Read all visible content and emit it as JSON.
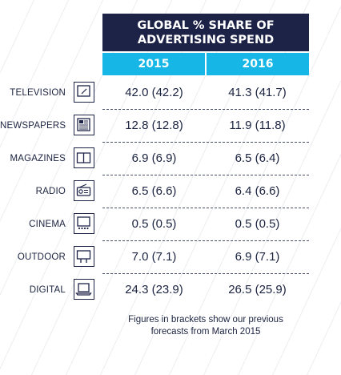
{
  "chart_data": {
    "type": "table",
    "title_line1": "GLOBAL % SHARE OF",
    "title_line2": "ADVERTISING SPEND",
    "columns": [
      "2015",
      "2016"
    ],
    "rows": [
      {
        "label": "TELEVISION",
        "icon": "television-icon",
        "v2015": "42.0 (42.2)",
        "v2016": "41.3 (41.7)"
      },
      {
        "label": "NEWSPAPERS",
        "icon": "newspaper-icon",
        "v2015": "12.8 (12.8)",
        "v2016": "11.9 (11.8)"
      },
      {
        "label": "MAGAZINES",
        "icon": "magazine-icon",
        "v2015": "6.9 (6.9)",
        "v2016": "6.5 (6.4)"
      },
      {
        "label": "RADIO",
        "icon": "radio-icon",
        "v2015": "6.5 (6.6)",
        "v2016": "6.4 (6.6)"
      },
      {
        "label": "CINEMA",
        "icon": "cinema-icon",
        "v2015": "0.5 (0.5)",
        "v2016": "0.5 (0.5)"
      },
      {
        "label": "OUTDOOR",
        "icon": "billboard-icon",
        "v2015": "7.0 (7.1)",
        "v2016": "6.9 (7.1)"
      },
      {
        "label": "DIGITAL",
        "icon": "laptop-icon",
        "v2015": "24.3 (23.9)",
        "v2016": "26.5 (25.9)"
      }
    ],
    "note_line1": "Figures in brackets show our previous",
    "note_line2": "forecasts from March 2015",
    "colors": {
      "header": "#1d2347",
      "year_bar": "#16b6e6",
      "text": "#1b2340"
    }
  }
}
